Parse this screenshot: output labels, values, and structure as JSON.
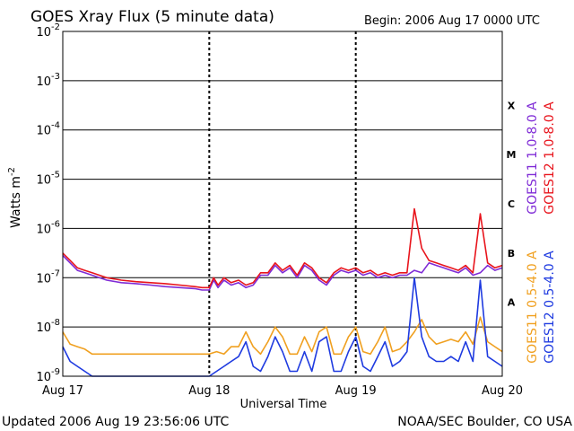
{
  "colors": {
    "background": "#ffffff",
    "axis": "#000000",
    "goes11_long": "#7f2bd6",
    "goes12_long": "#e8141c",
    "goes11_short": "#f0a020",
    "goes12_short": "#1f3be0"
  },
  "chart_data": {
    "type": "line",
    "title": "GOES Xray Flux (5 minute data)",
    "begin_label": "Begin:  2006 Aug 17 0000 UTC",
    "xlabel": "Universal Time",
    "ylabel": "Watts m",
    "ylabel_sup": "-2",
    "y_scale": "log",
    "ylim": [
      1e-09,
      0.01
    ],
    "y_ticks": [
      {
        "base": "10",
        "exp": "-9",
        "value": -9
      },
      {
        "base": "10",
        "exp": "-8",
        "value": -8
      },
      {
        "base": "10",
        "exp": "-7",
        "value": -7
      },
      {
        "base": "10",
        "exp": "-6",
        "value": -6
      },
      {
        "base": "10",
        "exp": "-5",
        "value": -5
      },
      {
        "base": "10",
        "exp": "-4",
        "value": -4
      },
      {
        "base": "10",
        "exp": "-3",
        "value": -3
      },
      {
        "base": "10",
        "exp": "-2",
        "value": -2
      }
    ],
    "x_ticks": [
      {
        "label": "Aug 17",
        "day": 0
      },
      {
        "label": "Aug 18",
        "day": 1
      },
      {
        "label": "Aug 19",
        "day": 2
      },
      {
        "label": "Aug 20",
        "day": 3
      }
    ],
    "flare_classes": [
      {
        "label": "A",
        "value": -7.5
      },
      {
        "label": "B",
        "value": -6.5
      },
      {
        "label": "C",
        "value": -5.5
      },
      {
        "label": "M",
        "value": -4.5
      },
      {
        "label": "X",
        "value": -3.5
      }
    ],
    "grid": true,
    "legend_placement": "right",
    "series": [
      {
        "name": "GOES11 1.0-8.0 A",
        "color": "#7f2bd6",
        "x": [
          0.0,
          0.05,
          0.1,
          0.15,
          0.2,
          0.25,
          0.3,
          0.4,
          0.5,
          0.6,
          0.7,
          0.8,
          0.9,
          0.95,
          1.0,
          1.03,
          1.06,
          1.1,
          1.15,
          1.2,
          1.25,
          1.3,
          1.35,
          1.4,
          1.45,
          1.5,
          1.55,
          1.6,
          1.65,
          1.7,
          1.75,
          1.8,
          1.85,
          1.9,
          1.95,
          2.0,
          2.05,
          2.1,
          2.15,
          2.2,
          2.25,
          2.3,
          2.35,
          2.4,
          2.45,
          2.5,
          2.55,
          2.6,
          2.65,
          2.7,
          2.75,
          2.8,
          2.85,
          2.9,
          2.95,
          3.0
        ],
        "y": [
          -6.55,
          -6.7,
          -6.85,
          -6.9,
          -6.95,
          -7.0,
          -7.05,
          -7.1,
          -7.12,
          -7.15,
          -7.18,
          -7.2,
          -7.22,
          -7.25,
          -7.25,
          -7.05,
          -7.2,
          -7.05,
          -7.15,
          -7.1,
          -7.2,
          -7.15,
          -6.95,
          -6.95,
          -6.75,
          -6.9,
          -6.8,
          -7.0,
          -6.75,
          -6.85,
          -7.05,
          -7.15,
          -6.95,
          -6.85,
          -6.9,
          -6.85,
          -6.95,
          -6.9,
          -7.0,
          -6.95,
          -7.0,
          -6.95,
          -6.95,
          -6.85,
          -6.9,
          -6.7,
          -6.75,
          -6.8,
          -6.85,
          -6.9,
          -6.8,
          -6.95,
          -6.9,
          -6.75,
          -6.85,
          -6.8
        ]
      },
      {
        "name": "GOES12 1.0-8.0 A",
        "color": "#e8141c",
        "x": [
          0.0,
          0.05,
          0.1,
          0.15,
          0.2,
          0.25,
          0.3,
          0.4,
          0.5,
          0.6,
          0.7,
          0.8,
          0.9,
          0.95,
          1.0,
          1.03,
          1.06,
          1.1,
          1.15,
          1.2,
          1.25,
          1.3,
          1.35,
          1.4,
          1.45,
          1.5,
          1.55,
          1.6,
          1.65,
          1.7,
          1.75,
          1.8,
          1.85,
          1.9,
          1.95,
          2.0,
          2.05,
          2.1,
          2.15,
          2.2,
          2.25,
          2.3,
          2.35,
          2.4,
          2.45,
          2.5,
          2.55,
          2.6,
          2.65,
          2.7,
          2.75,
          2.8,
          2.85,
          2.9,
          2.95,
          3.0
        ],
        "y": [
          -6.5,
          -6.65,
          -6.8,
          -6.85,
          -6.9,
          -6.95,
          -7.0,
          -7.05,
          -7.08,
          -7.1,
          -7.12,
          -7.15,
          -7.18,
          -7.2,
          -7.2,
          -7.0,
          -7.15,
          -7.0,
          -7.1,
          -7.05,
          -7.15,
          -7.1,
          -6.9,
          -6.9,
          -6.7,
          -6.85,
          -6.75,
          -6.95,
          -6.7,
          -6.8,
          -7.0,
          -7.1,
          -6.9,
          -6.8,
          -6.85,
          -6.8,
          -6.9,
          -6.85,
          -6.95,
          -6.9,
          -6.95,
          -6.9,
          -6.9,
          -5.6,
          -6.4,
          -6.65,
          -6.7,
          -6.75,
          -6.8,
          -6.85,
          -6.75,
          -6.9,
          -5.7,
          -6.7,
          -6.8,
          -6.75
        ]
      },
      {
        "name": "GOES11 0.5-4.0 A",
        "color": "#f0a020",
        "x": [
          0.0,
          0.05,
          0.1,
          0.15,
          0.2,
          0.3,
          0.4,
          0.5,
          0.6,
          0.7,
          0.8,
          0.9,
          1.0,
          1.05,
          1.1,
          1.15,
          1.2,
          1.25,
          1.3,
          1.35,
          1.4,
          1.45,
          1.5,
          1.55,
          1.6,
          1.65,
          1.7,
          1.75,
          1.8,
          1.85,
          1.9,
          1.95,
          2.0,
          2.05,
          2.1,
          2.15,
          2.2,
          2.25,
          2.3,
          2.35,
          2.4,
          2.45,
          2.5,
          2.55,
          2.6,
          2.65,
          2.7,
          2.75,
          2.8,
          2.85,
          2.9,
          2.95,
          3.0
        ],
        "y": [
          -8.1,
          -8.35,
          -8.4,
          -8.45,
          -8.55,
          -8.55,
          -8.55,
          -8.55,
          -8.55,
          -8.55,
          -8.55,
          -8.55,
          -8.55,
          -8.5,
          -8.55,
          -8.4,
          -8.4,
          -8.1,
          -8.4,
          -8.55,
          -8.3,
          -8.0,
          -8.2,
          -8.55,
          -8.55,
          -8.2,
          -8.5,
          -8.1,
          -8.0,
          -8.55,
          -8.55,
          -8.2,
          -8.0,
          -8.5,
          -8.55,
          -8.3,
          -8.0,
          -8.5,
          -8.45,
          -8.3,
          -8.1,
          -7.85,
          -8.2,
          -8.35,
          -8.3,
          -8.25,
          -8.3,
          -8.1,
          -8.35,
          -7.8,
          -8.3,
          -8.4,
          -8.5
        ]
      },
      {
        "name": "GOES12 0.5-4.0 A",
        "color": "#1f3be0",
        "x": [
          0.0,
          0.05,
          0.1,
          0.15,
          0.2,
          0.3,
          0.4,
          0.5,
          0.6,
          0.7,
          0.8,
          0.9,
          1.0,
          1.05,
          1.1,
          1.15,
          1.2,
          1.25,
          1.3,
          1.35,
          1.4,
          1.45,
          1.5,
          1.55,
          1.6,
          1.65,
          1.7,
          1.75,
          1.8,
          1.85,
          1.9,
          1.95,
          2.0,
          2.05,
          2.1,
          2.15,
          2.2,
          2.25,
          2.3,
          2.35,
          2.4,
          2.45,
          2.5,
          2.55,
          2.6,
          2.65,
          2.7,
          2.75,
          2.8,
          2.85,
          2.9,
          2.95,
          3.0
        ],
        "y": [
          -8.4,
          -8.7,
          -8.8,
          -8.9,
          -9.0,
          -9.0,
          -9.0,
          -9.0,
          -9.0,
          -9.0,
          -9.0,
          -9.0,
          -9.0,
          -8.9,
          -8.8,
          -8.7,
          -8.6,
          -8.3,
          -8.8,
          -8.9,
          -8.6,
          -8.2,
          -8.5,
          -8.9,
          -8.9,
          -8.5,
          -8.9,
          -8.3,
          -8.2,
          -8.9,
          -8.9,
          -8.5,
          -8.2,
          -8.8,
          -8.9,
          -8.6,
          -8.3,
          -8.8,
          -8.7,
          -8.5,
          -7.0,
          -8.2,
          -8.6,
          -8.7,
          -8.7,
          -8.6,
          -8.7,
          -8.3,
          -8.7,
          -7.05,
          -8.6,
          -8.7,
          -8.8
        ]
      }
    ]
  },
  "footer": {
    "updated": "Updated 2006 Aug 19 23:56:06 UTC",
    "credit": "NOAA/SEC Boulder, CO USA"
  }
}
